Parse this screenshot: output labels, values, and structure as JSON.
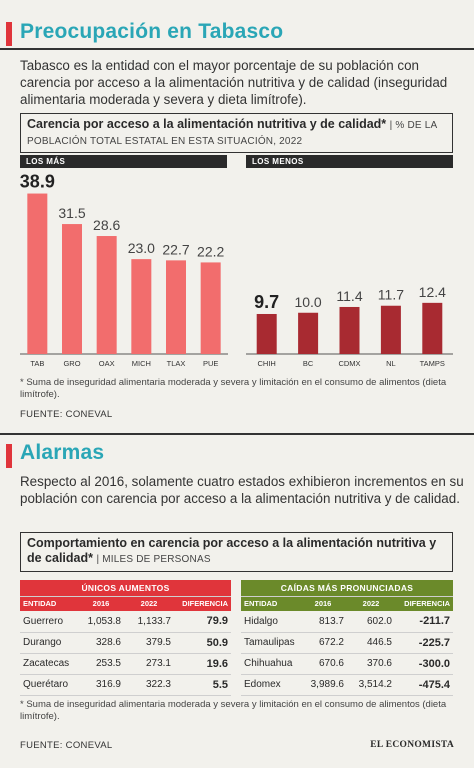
{
  "section1": {
    "title": "Preocupación en Tabasco",
    "paragraph": "Tabasco es la entidad con el mayor porcentaje de su población con carencia por acceso a la alimentación nutritiva y de calidad (inseguridad alimentaria moderada y severa y dieta limítrofe).",
    "box_title": "Carencia por acceso a la alimentación nutritiva y de calidad*",
    "box_sub": "| % DE LA POBLACIÓN TOTAL ESTATAL EN ESTA SITUACIÓN, 2022",
    "note": "* Suma de inseguridad alimentaria moderada y severa y limitación en el consumo de alimentos (dieta limítrofe).",
    "source": "FUENTE: CONEVAL"
  },
  "section2": {
    "title": "Alarmas",
    "paragraph": "Respecto al 2016, solamente cuatro estados exhibieron incrementos en su población con carencia por acceso a la alimentación nutritiva y de calidad.",
    "box_title": "Comportamiento en carencia por acceso a la alimentación nutritiva y de calidad*",
    "box_sub": "| MILES DE PERSONAS",
    "note": "* Suma de inseguridad alimentaria moderada y severa y limitación en el consumo de alimentos (dieta limítrofe).",
    "source": "FUENTE: CONEVAL",
    "brand": "EL ECONOMISTA"
  },
  "colors": {
    "accent_red": "#e0353b",
    "title_teal": "#2aa6b6",
    "bar_light": "#f26d6d",
    "bar_dark": "#a82a31",
    "table_red": "#e0353b",
    "table_green": "#6b8a2a"
  },
  "chart_data": [
    {
      "type": "bar",
      "panel_label": "LOS MÁS",
      "categories": [
        "TAB",
        "GRO",
        "OAX",
        "MICH",
        "TLAX",
        "PUE"
      ],
      "values": [
        38.9,
        31.5,
        28.6,
        23.0,
        22.7,
        22.2
      ],
      "value_labels": [
        "38.9",
        "31.5",
        "28.6",
        "23.0",
        "22.7",
        "22.2"
      ],
      "ylim": [
        0,
        40
      ],
      "color": "#f26d6d"
    },
    {
      "type": "bar",
      "panel_label": "LOS MENOS",
      "categories": [
        "CHIH",
        "BC",
        "CDMX",
        "NL",
        "TAMPS"
      ],
      "values": [
        9.7,
        10.0,
        11.4,
        11.7,
        12.4
      ],
      "value_labels": [
        "9.7",
        "10.0",
        "11.4",
        "11.7",
        "12.4"
      ],
      "ylim": [
        0,
        40
      ],
      "color": "#a82a31"
    },
    {
      "type": "table",
      "header": "ÚNICOS AUMENTOS",
      "columns": [
        "ENTIDAD",
        "2016",
        "2022",
        "DIFERENCIA"
      ],
      "rows": [
        [
          "Guerrero",
          "1,053.8",
          "1,133.7",
          "79.9"
        ],
        [
          "Durango",
          "328.6",
          "379.5",
          "50.9"
        ],
        [
          "Zacatecas",
          "253.5",
          "273.1",
          "19.6"
        ],
        [
          "Querétaro",
          "316.9",
          "322.3",
          "5.5"
        ]
      ]
    },
    {
      "type": "table",
      "header": "CAÍDAS MÁS PRONUNCIADAS",
      "columns": [
        "ENTIDAD",
        "2016",
        "2022",
        "DIFERENCIA"
      ],
      "rows": [
        [
          "Hidalgo",
          "813.7",
          "602.0",
          "-211.7"
        ],
        [
          "Tamaulipas",
          "672.2",
          "446.5",
          "-225.7"
        ],
        [
          "Chihuahua",
          "670.6",
          "370.6",
          "-300.0"
        ],
        [
          "Edomex",
          "3,989.6",
          "3,514.2",
          "-475.4"
        ]
      ]
    }
  ]
}
